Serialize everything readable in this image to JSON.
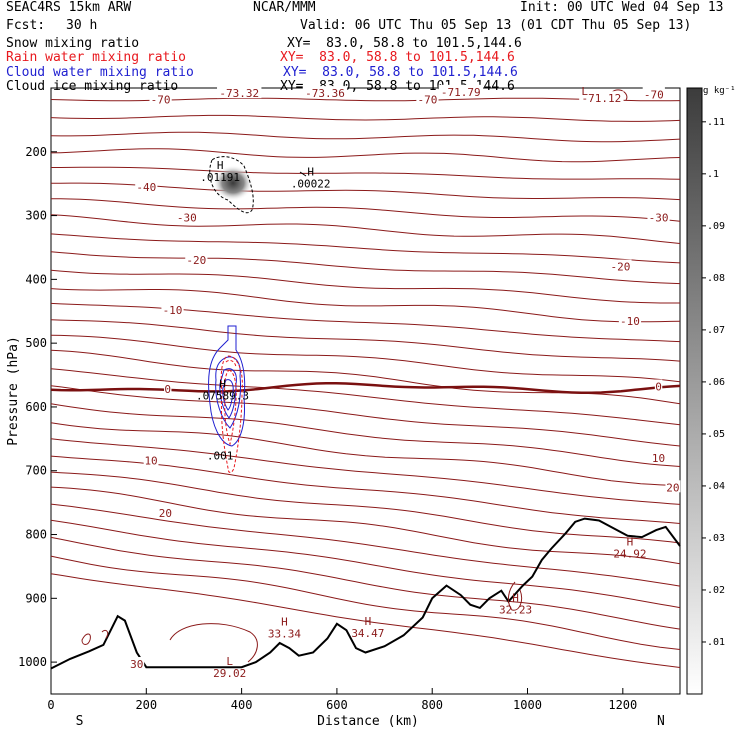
{
  "header": {
    "model": "SEAC4RS 15km ARW",
    "org": "NCAR/MMM",
    "init": "Init: 00 UTC Wed 04 Sep 13",
    "fcst_label": "Fcst:",
    "fcst_value": "30 h",
    "valid": "Valid: 06 UTC Thu 05 Sep 13 (01 CDT Thu 05 Sep 13)"
  },
  "fields": [
    {
      "name": "Snow mixing ratio",
      "xy": "XY=  83.0, 58.8 to 101.5,144.6",
      "color": "#000000"
    },
    {
      "name": "Rain water mixing ratio",
      "xy": "XY=  83.0, 58.8 to 101.5,144.6",
      "color": "#e8191e"
    },
    {
      "name": "Cloud water mixing ratio",
      "xy": "XY=  83.0, 58.8 to 101.5,144.6",
      "color": "#1f1fd0"
    },
    {
      "name": "Cloud ice mixing ratio",
      "xy": "XY=  83.0, 58.8 to 101.5,144.6",
      "color": "#000000"
    }
  ],
  "colorbar": {
    "unit": "g kg⁻¹",
    "ticks": [
      ".11",
      ".1",
      ".09",
      ".08",
      ".07",
      ".06",
      ".05",
      ".04",
      ".03",
      ".02",
      ".01"
    ],
    "values": [
      0.11,
      0.1,
      0.09,
      0.08,
      0.07,
      0.06,
      0.05,
      0.04,
      0.03,
      0.02,
      0.01
    ]
  },
  "chart_data": {
    "type": "cross-section contour",
    "xlabel": "Distance (km)",
    "ylabel": "Pressure (hPa)",
    "x_ticks": [
      "0",
      "200",
      "400",
      "600",
      "800",
      "1000",
      "1200"
    ],
    "x_tick_values": [
      0,
      200,
      400,
      600,
      800,
      1000,
      1200
    ],
    "y_ticks": [
      "200",
      "300",
      "400",
      "500",
      "600",
      "700",
      "800",
      "900",
      "1000"
    ],
    "y_tick_values": [
      200,
      300,
      400,
      500,
      600,
      700,
      800,
      900,
      1000
    ],
    "xlim": [
      0,
      1320
    ],
    "ylim": [
      1050,
      100
    ],
    "left_end": "S",
    "right_end": "N",
    "isotherm_levels": [
      -70,
      -40,
      -30,
      -20,
      -10,
      0,
      10,
      20,
      30
    ],
    "contour_labels": [
      {
        "text": "-70",
        "x": 230,
        "p": 118
      },
      {
        "text": "-70",
        "x": 790,
        "p": 118
      },
      {
        "text": "-70",
        "x": 1265,
        "p": 110
      },
      {
        "text": "-73.32",
        "x": 395,
        "p": 108
      },
      {
        "text": "-73.36",
        "x": 575,
        "p": 108
      },
      {
        "text": "-71.79",
        "x": 860,
        "p": 106
      },
      {
        "text": "-71.12",
        "x": 1155,
        "p": 116
      },
      {
        "text": "-40",
        "x": 200,
        "p": 255
      },
      {
        "text": "-30",
        "x": 285,
        "p": 303
      },
      {
        "text": "-30",
        "x": 1275,
        "p": 303
      },
      {
        "text": "-20",
        "x": 305,
        "p": 370
      },
      {
        "text": "-20",
        "x": 1195,
        "p": 380
      },
      {
        "text": "-10",
        "x": 255,
        "p": 448
      },
      {
        "text": "-10",
        "x": 1215,
        "p": 465
      },
      {
        "text": "0",
        "x": 245,
        "p": 572
      },
      {
        "text": "0",
        "x": 1275,
        "p": 568
      },
      {
        "text": "10",
        "x": 210,
        "p": 684
      },
      {
        "text": "10",
        "x": 1275,
        "p": 680
      },
      {
        "text": "20",
        "x": 240,
        "p": 766
      },
      {
        "text": "20",
        "x": 1305,
        "p": 726
      },
      {
        "text": "30",
        "x": 180,
        "p": 1003
      }
    ],
    "extrema": [
      {
        "type": "H",
        "value": ".01191",
        "x": 355,
        "p": 230
      },
      {
        "type": "H",
        "value": ".00022",
        "x": 545,
        "p": 240
      },
      {
        "type": "H",
        "value": "33.34",
        "x": 490,
        "p": 946
      },
      {
        "type": "H",
        "value": "34.47",
        "x": 665,
        "p": 945
      },
      {
        "type": "H",
        "value": "32.23",
        "x": 975,
        "p": 908
      },
      {
        "type": "H",
        "value": "24.92",
        "x": 1215,
        "p": 820
      },
      {
        "type": "L",
        "value": "29.02",
        "x": 375,
        "p": 1008
      },
      {
        "type": "L",
        "value": "",
        "x": 1120,
        "p": 114
      },
      {
        "type": "H",
        "value": ".07589.3",
        "x": 360,
        "p": 573
      },
      {
        "type": "",
        "value": ".001",
        "x": 355,
        "p": 667
      }
    ],
    "terrain_profile": [
      [
        0,
        1010
      ],
      [
        40,
        995
      ],
      [
        80,
        983
      ],
      [
        110,
        973
      ],
      [
        140,
        928
      ],
      [
        155,
        935
      ],
      [
        180,
        985
      ],
      [
        200,
        1008
      ],
      [
        400,
        1008
      ],
      [
        430,
        1000
      ],
      [
        460,
        985
      ],
      [
        480,
        970
      ],
      [
        500,
        978
      ],
      [
        520,
        990
      ],
      [
        550,
        985
      ],
      [
        580,
        963
      ],
      [
        600,
        940
      ],
      [
        620,
        950
      ],
      [
        640,
        978
      ],
      [
        660,
        985
      ],
      [
        700,
        975
      ],
      [
        740,
        958
      ],
      [
        780,
        930
      ],
      [
        800,
        900
      ],
      [
        830,
        880
      ],
      [
        860,
        895
      ],
      [
        880,
        910
      ],
      [
        900,
        915
      ],
      [
        920,
        900
      ],
      [
        945,
        888
      ],
      [
        960,
        905
      ],
      [
        990,
        880
      ],
      [
        1010,
        866
      ],
      [
        1030,
        840
      ],
      [
        1050,
        822
      ],
      [
        1080,
        798
      ],
      [
        1100,
        780
      ],
      [
        1120,
        775
      ],
      [
        1150,
        778
      ],
      [
        1180,
        790
      ],
      [
        1210,
        802
      ],
      [
        1240,
        804
      ],
      [
        1270,
        793
      ],
      [
        1290,
        788
      ],
      [
        1320,
        818
      ]
    ]
  }
}
